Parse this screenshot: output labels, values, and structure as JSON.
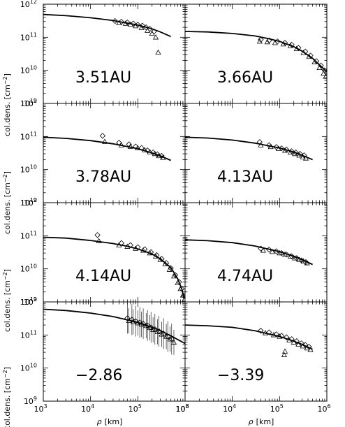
{
  "figure": {
    "ylabel_prefix": "col.dens. [cm",
    "ylabel_exp": "−2",
    "ylabel_suffix": "]",
    "xlabel_symbol": "ρ",
    "xlabel_units": "[km]",
    "x_tick_base": "10",
    "x_tick_exps": [
      "3",
      "4",
      "5",
      "6"
    ],
    "y_tick_base": "10",
    "y_tick_exps": [
      "9",
      "10",
      "11",
      "12"
    ]
  },
  "chart_data": [
    {
      "type": "scatter",
      "label": "3.51AU",
      "xscale": "log",
      "yscale": "log",
      "xlim": [
        1000,
        1000000
      ],
      "ylim": [
        1000000000.0,
        1000000000000.0
      ],
      "model": {
        "x": [
          1000,
          3000,
          10000,
          30000,
          100000,
          200000,
          300000,
          500000
        ],
        "y": [
          490000000000.0,
          450000000000.0,
          390000000000.0,
          320000000000.0,
          235000000000.0,
          180000000000.0,
          145000000000.0,
          105000000000.0
        ]
      },
      "diamonds": {
        "x": [
          33000,
          45000,
          60000,
          80000,
          100000,
          125000,
          150000,
          180000,
          220000
        ],
        "y": [
          310000000000.0,
          295000000000.0,
          280000000000.0,
          260000000000.0,
          240000000000.0,
          225000000000.0,
          200000000000.0,
          180000000000.0,
          150000000000.0
        ]
      },
      "triangles": {
        "x": [
          40000,
          55000,
          70000,
          90000,
          120000,
          160000,
          200000,
          240000,
          270000
        ],
        "y": [
          270000000000.0,
          260000000000.0,
          245000000000.0,
          220000000000.0,
          195000000000.0,
          160000000000.0,
          130000000000.0,
          100000000000.0,
          35000000000.0
        ]
      }
    },
    {
      "type": "scatter",
      "label": "3.66AU",
      "xscale": "log",
      "yscale": "log",
      "xlim": [
        1000,
        1000000
      ],
      "ylim": [
        1000000000.0,
        1000000000000.0
      ],
      "model": {
        "x": [
          1000,
          3000,
          10000,
          30000,
          60000,
          100000,
          200000,
          300000,
          500000,
          1000000
        ],
        "y": [
          150000000000.0,
          145000000000.0,
          130000000000.0,
          110000000000.0,
          90000000000.0,
          75000000000.0,
          52000000000.0,
          38000000000.0,
          23000000000.0,
          9000000000.0
        ]
      },
      "diamonds": {
        "x": [
          40000,
          60000,
          90000,
          130000,
          180000,
          250000,
          350000,
          450000,
          600000,
          750000,
          900000
        ],
        "y": [
          85000000000.0,
          80000000000.0,
          75000000000.0,
          68000000000.0,
          60000000000.0,
          48000000000.0,
          37000000000.0,
          28000000000.0,
          19000000000.0,
          14000000000.0,
          10000000000.0
        ]
      },
      "triangles": {
        "x": [
          38000,
          55000,
          80000,
          120000,
          170000,
          230000,
          320000,
          420000,
          550000,
          700000,
          850000,
          950000
        ],
        "y": [
          75000000000.0,
          72000000000.0,
          68000000000.0,
          62000000000.0,
          55000000000.0,
          45000000000.0,
          34000000000.0,
          26000000000.0,
          18000000000.0,
          12000000000.0,
          8000000000.0,
          6500000000.0
        ]
      }
    },
    {
      "type": "scatter",
      "label": "3.78AU",
      "xscale": "log",
      "yscale": "log",
      "xlim": [
        1000,
        1000000
      ],
      "ylim": [
        1000000000.0,
        1000000000000.0
      ],
      "model": {
        "x": [
          1000,
          3000,
          10000,
          30000,
          100000,
          200000,
          300000,
          500000
        ],
        "y": [
          95000000000.0,
          88000000000.0,
          75000000000.0,
          60000000000.0,
          43000000000.0,
          32000000000.0,
          26000000000.0,
          19000000000.0
        ]
      },
      "diamonds": {
        "x": [
          18000,
          40000,
          65000,
          90000,
          120000,
          160000,
          210000,
          260000,
          320000
        ],
        "y": [
          105000000000.0,
          65000000000.0,
          58000000000.0,
          50000000000.0,
          45000000000.0,
          38000000000.0,
          33000000000.0,
          29000000000.0,
          26000000000.0
        ]
      },
      "triangles": {
        "x": [
          20000,
          45000,
          70000,
          100000,
          140000,
          180000,
          230000,
          280000,
          340000
        ],
        "y": [
          70000000000.0,
          55000000000.0,
          50000000000.0,
          45000000000.0,
          39000000000.0,
          34000000000.0,
          30000000000.0,
          26000000000.0,
          23000000000.0
        ]
      }
    },
    {
      "type": "scatter",
      "label": "4.13AU",
      "xscale": "log",
      "yscale": "log",
      "xlim": [
        1000,
        1000000
      ],
      "ylim": [
        1000000000.0,
        1000000000000.0
      ],
      "model": {
        "x": [
          1000,
          3000,
          10000,
          30000,
          100000,
          200000,
          300000,
          500000
        ],
        "y": [
          95000000000.0,
          90000000000.0,
          78000000000.0,
          63000000000.0,
          45000000000.0,
          34000000000.0,
          27000000000.0,
          20000000000.0
        ]
      },
      "diamonds": {
        "x": [
          38000,
          60000,
          85000,
          110000,
          140000,
          180000,
          220000,
          270000,
          330000
        ],
        "y": [
          68000000000.0,
          55000000000.0,
          48000000000.0,
          44000000000.0,
          40000000000.0,
          36000000000.0,
          33000000000.0,
          30000000000.0,
          27000000000.0
        ]
      },
      "triangles": {
        "x": [
          40000,
          65000,
          95000,
          130000,
          170000,
          210000,
          260000,
          310000,
          360000
        ],
        "y": [
          55000000000.0,
          49000000000.0,
          43000000000.0,
          38000000000.0,
          33000000000.0,
          30000000000.0,
          27000000000.0,
          24000000000.0,
          22000000000.0
        ]
      }
    },
    {
      "type": "scatter",
      "label": "4.14AU",
      "xscale": "log",
      "yscale": "log",
      "xlim": [
        1000,
        1000000
      ],
      "ylim": [
        1000000000.0,
        1000000000000.0
      ],
      "model": {
        "x": [
          1000,
          3000,
          10000,
          30000,
          60000,
          100000,
          200000,
          300000,
          500000,
          700000,
          850000,
          950000
        ],
        "y": [
          90000000000.0,
          85000000000.0,
          72000000000.0,
          58000000000.0,
          48000000000.0,
          40000000000.0,
          28000000000.0,
          20000000000.0,
          11000000000.0,
          5000000000.0,
          2500000000.0,
          1300000000.0
        ]
      },
      "diamonds": {
        "x": [
          14000,
          45000,
          70000,
          100000,
          140000,
          190000,
          250000,
          320000,
          400000,
          500000,
          620000,
          750000,
          850000,
          950000
        ],
        "y": [
          105000000000.0,
          60000000000.0,
          52000000000.0,
          45000000000.0,
          39000000000.0,
          32000000000.0,
          26000000000.0,
          20000000000.0,
          15000000000.0,
          10500000000.0,
          6500000000.0,
          4000000000.0,
          2500000000.0,
          1500000000.0
        ]
      },
      "triangles": {
        "x": [
          15000,
          40000,
          60000,
          90000,
          130000,
          180000,
          240000,
          300000,
          380000,
          470000,
          580000,
          700000,
          800000,
          900000,
          980000
        ],
        "y": [
          70000000000.0,
          52000000000.0,
          47000000000.0,
          41000000000.0,
          36000000000.0,
          30000000000.0,
          24000000000.0,
          19000000000.0,
          14000000000.0,
          9500000000.0,
          6000000000.0,
          3800000000.0,
          2500000000.0,
          1600000000.0,
          1200000000.0
        ]
      }
    },
    {
      "type": "scatter",
      "label": "4.74AU",
      "xscale": "log",
      "yscale": "log",
      "xlim": [
        1000,
        1000000
      ],
      "ylim": [
        1000000000.0,
        1000000000000.0
      ],
      "model": {
        "x": [
          1000,
          3000,
          10000,
          30000,
          100000,
          200000,
          300000,
          500000
        ],
        "y": [
          75000000000.0,
          71000000000.0,
          62000000000.0,
          49000000000.0,
          33000000000.0,
          24000000000.0,
          19000000000.0,
          13500000000.0
        ]
      },
      "diamonds": {
        "x": [
          40000,
          60000,
          85000,
          110000,
          140000,
          180000,
          230000,
          290000,
          360000
        ],
        "y": [
          41000000000.0,
          38000000000.0,
          34000000000.0,
          30000000000.0,
          27000000000.0,
          24000000000.0,
          21000000000.0,
          18000000000.0,
          16000000000.0
        ]
      },
      "triangles": {
        "x": [
          45000,
          70000,
          100000,
          130000,
          170000,
          210000,
          260000,
          320000,
          380000
        ],
        "y": [
          36000000000.0,
          33000000000.0,
          30000000000.0,
          27000000000.0,
          24000000000.0,
          21000000000.0,
          19000000000.0,
          17000000000.0,
          15000000000.0
        ]
      }
    },
    {
      "type": "scatter",
      "label": "−2.86",
      "xscale": "log",
      "yscale": "log",
      "xlim": [
        1000,
        1000000
      ],
      "ylim": [
        1000000000.0,
        1000000000000.0
      ],
      "model": {
        "x": [
          1000,
          3000,
          10000,
          30000,
          100000,
          200000,
          300000,
          500000,
          1000000
        ],
        "y": [
          600000000000.0,
          550000000000.0,
          460000000000.0,
          360000000000.0,
          240000000000.0,
          170000000000.0,
          135000000000.0,
          95000000000.0,
          55000000000.0
        ]
      },
      "diamonds": {
        "x": [
          60000,
          75000,
          90000,
          110000,
          130000,
          160000,
          190000,
          230000,
          280000,
          350000,
          430000,
          520000
        ],
        "y": [
          320000000000.0,
          290000000000.0,
          260000000000.0,
          240000000000.0,
          220000000000.0,
          195000000000.0,
          170000000000.0,
          150000000000.0,
          130000000000.0,
          110000000000.0,
          90000000000.0,
          75000000000.0
        ]
      },
      "triangles": {
        "x": [
          65000,
          80000,
          100000,
          120000,
          150000,
          180000,
          210000,
          260000,
          320000,
          400000,
          480000,
          580000
        ],
        "y": [
          270000000000.0,
          250000000000.0,
          230000000000.0,
          210000000000.0,
          190000000000.0,
          165000000000.0,
          145000000000.0,
          125000000000.0,
          105000000000.0,
          90000000000.0,
          75000000000.0,
          60000000000.0
        ]
      },
      "errorbars": true
    },
    {
      "type": "scatter",
      "label": "−3.39",
      "xscale": "log",
      "yscale": "log",
      "xlim": [
        1000,
        1000000
      ],
      "ylim": [
        1000000000.0,
        1000000000000.0
      ],
      "model": {
        "x": [
          1000,
          3000,
          10000,
          30000,
          100000,
          200000,
          300000,
          500000
        ],
        "y": [
          200000000000.0,
          190000000000.0,
          170000000000.0,
          135000000000.0,
          90000000000.0,
          65000000000.0,
          52000000000.0,
          37000000000.0
        ]
      },
      "diamonds": {
        "x": [
          40000,
          60000,
          85000,
          110000,
          140000,
          180000,
          230000,
          290000,
          350000,
          420000
        ],
        "y": [
          135000000000.0,
          120000000000.0,
          105000000000.0,
          95000000000.0,
          85000000000.0,
          75000000000.0,
          65000000000.0,
          56000000000.0,
          50000000000.0,
          44000000000.0
        ]
      },
      "triangles": {
        "x": [
          50000,
          75000,
          100000,
          125000,
          130000,
          160000,
          200000,
          250000,
          310000,
          380000,
          450000
        ],
        "y": [
          115000000000.0,
          100000000000.0,
          90000000000.0,
          25000000000.0,
          32000000000.0,
          70000000000.0,
          60000000000.0,
          52000000000.0,
          46000000000.0,
          40000000000.0,
          36000000000.0
        ]
      }
    }
  ]
}
